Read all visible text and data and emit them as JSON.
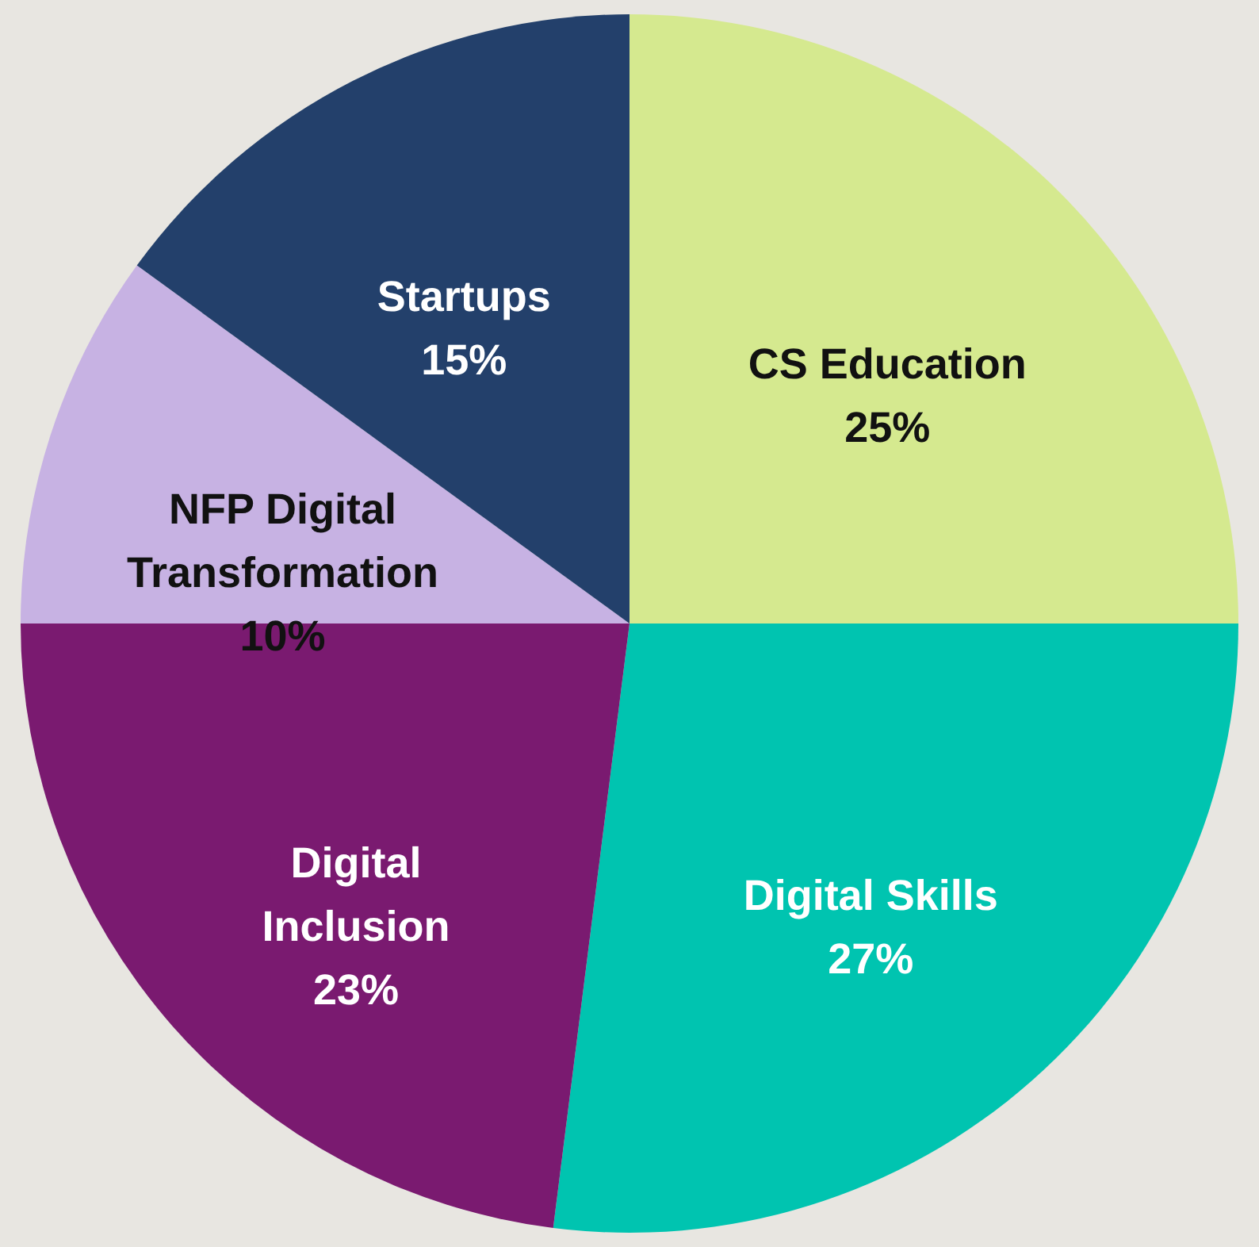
{
  "chart_data": {
    "type": "pie",
    "categories": [
      "CS Education",
      "Digital Skills",
      "Digital Inclusion",
      "NFP Digital Transformation",
      "Startups"
    ],
    "values": [
      25,
      27,
      23,
      10,
      15
    ],
    "value_labels": [
      "25%",
      "27%",
      "23%",
      "10%",
      "15%"
    ],
    "colors": [
      "#d5e98f",
      "#00c4b0",
      "#7a1a70",
      "#c7b2e3",
      "#23406b"
    ]
  }
}
